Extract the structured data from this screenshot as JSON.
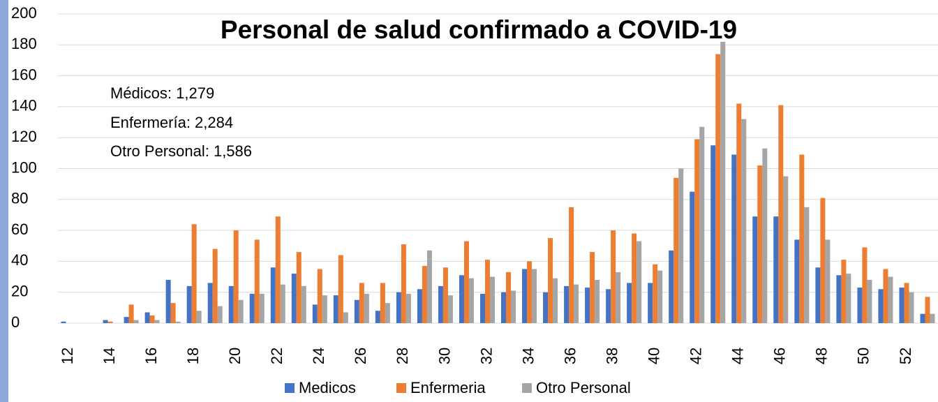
{
  "chart_data": {
    "type": "bar",
    "title": "Personal de salud confirmado a COVID-19",
    "annotations": [
      "Médicos: 1,279",
      "Enfermería: 2,284",
      "Otro Personal: 1,586"
    ],
    "categories": [
      "12",
      null,
      "14",
      null,
      "16",
      null,
      "18",
      null,
      "20",
      null,
      "22",
      null,
      "24",
      null,
      "26",
      null,
      "28",
      null,
      "30",
      null,
      "32",
      null,
      "34",
      null,
      "36",
      null,
      "38",
      null,
      "40",
      null,
      "42",
      null,
      "44",
      null,
      "46",
      null,
      "48",
      null,
      "50",
      null,
      "52",
      null
    ],
    "series": [
      {
        "name": "Medicos",
        "color": "#4472c4",
        "values": [
          1,
          0,
          2,
          4,
          7,
          28,
          24,
          26,
          24,
          19,
          36,
          32,
          12,
          18,
          15,
          8,
          20,
          22,
          24,
          31,
          19,
          20,
          35,
          20,
          24,
          23,
          22,
          26,
          26,
          47,
          85,
          115,
          109,
          69,
          69,
          54,
          36,
          31,
          23,
          22,
          23,
          6
        ]
      },
      {
        "name": "Enfermeria",
        "color": "#ed7d31",
        "values": [
          0,
          0,
          1,
          12,
          5,
          13,
          64,
          48,
          60,
          54,
          69,
          46,
          35,
          44,
          26,
          26,
          51,
          37,
          36,
          53,
          41,
          33,
          40,
          55,
          75,
          46,
          60,
          58,
          38,
          94,
          119,
          174,
          142,
          102,
          141,
          109,
          81,
          41,
          49,
          35,
          26,
          17
        ]
      },
      {
        "name": "Otro Personal",
        "color": "#a5a5a5",
        "values": [
          0,
          0,
          0,
          2,
          2,
          1,
          8,
          11,
          15,
          19,
          25,
          24,
          18,
          7,
          19,
          13,
          19,
          47,
          18,
          29,
          30,
          21,
          35,
          29,
          25,
          28,
          33,
          53,
          34,
          100,
          127,
          182,
          132,
          113,
          95,
          75,
          54,
          32,
          28,
          30,
          20,
          6
        ]
      }
    ],
    "ylim": [
      0,
      200
    ],
    "yticks": [
      0,
      20,
      40,
      60,
      80,
      100,
      120,
      140,
      160,
      180,
      200
    ],
    "grid": true,
    "legend": "bottom"
  }
}
